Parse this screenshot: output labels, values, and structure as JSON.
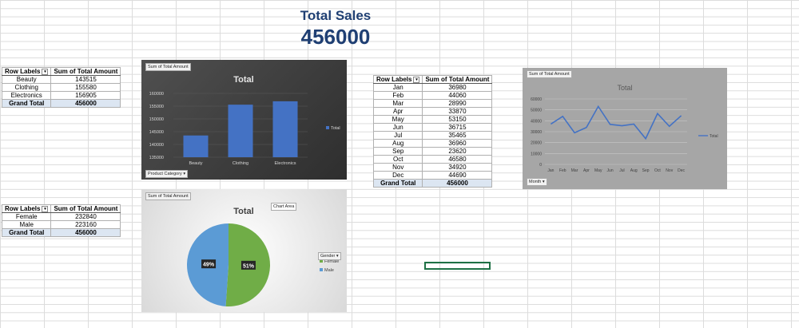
{
  "header": {
    "title": "Total Sales",
    "total": "456000"
  },
  "pivot_category": {
    "headers": [
      "Row Labels",
      "Sum of Total Amount"
    ],
    "rows": [
      [
        "Beauty",
        "143515"
      ],
      [
        "Clothing",
        "155580"
      ],
      [
        "Electronics",
        "156905"
      ]
    ],
    "grand_total": [
      "Grand Total",
      "456000"
    ]
  },
  "pivot_gender": {
    "headers": [
      "Row Labels",
      "Sum of Total Amount"
    ],
    "rows": [
      [
        "Female",
        "232840"
      ],
      [
        "Male",
        "223160"
      ]
    ],
    "grand_total": [
      "Grand Total",
      "456000"
    ]
  },
  "pivot_month": {
    "headers": [
      "Row Labels",
      "Sum of Total Amount"
    ],
    "rows": [
      [
        "Jan",
        "36980"
      ],
      [
        "Feb",
        "44060"
      ],
      [
        "Mar",
        "28990"
      ],
      [
        "Apr",
        "33870"
      ],
      [
        "May",
        "53150"
      ],
      [
        "Jun",
        "36715"
      ],
      [
        "Jul",
        "35465"
      ],
      [
        "Aug",
        "36960"
      ],
      [
        "Sep",
        "23620"
      ],
      [
        "Oct",
        "46580"
      ],
      [
        "Nov",
        "34920"
      ],
      [
        "Dec",
        "44690"
      ]
    ],
    "grand_total": [
      "Grand Total",
      "456000"
    ]
  },
  "chart_data": [
    {
      "type": "bar",
      "title": "Total",
      "field_button": "Sum of Total Amount",
      "axis_button": "Product Category",
      "legend": [
        "Total"
      ],
      "legend_position": "right",
      "categories": [
        "Beauty",
        "Clothing",
        "Electronics"
      ],
      "series": [
        {
          "name": "Total",
          "values": [
            143515,
            155580,
            156905
          ]
        }
      ],
      "ylim": [
        135000,
        160000
      ],
      "yticks": [
        "160000",
        "155000",
        "150000",
        "145000",
        "140000",
        "135000"
      ],
      "colors": {
        "bar": "#4472c4",
        "background": "#404040"
      }
    },
    {
      "type": "line",
      "title": "Total",
      "field_button": "Sum of Total Amount",
      "axis_button": "Month",
      "legend": [
        "Total"
      ],
      "legend_position": "right",
      "categories": [
        "Jan",
        "Feb",
        "Mar",
        "Apr",
        "May",
        "Jun",
        "Jul",
        "Aug",
        "Sep",
        "Oct",
        "Nov",
        "Dec"
      ],
      "series": [
        {
          "name": "Total",
          "values": [
            36980,
            44060,
            28990,
            33870,
            53150,
            36715,
            35465,
            36960,
            23620,
            46580,
            34920,
            44690
          ]
        }
      ],
      "ylim": [
        0,
        60000
      ],
      "yticks": [
        "60000",
        "50000",
        "40000",
        "30000",
        "20000",
        "10000",
        "0"
      ],
      "colors": {
        "line": "#4472c4",
        "background": "#a6a6a6"
      }
    },
    {
      "type": "pie",
      "title": "Total",
      "field_button": "Sum of Total Amount",
      "legend_title": "Gender",
      "legend": [
        "Female",
        "Male"
      ],
      "legend_position": "right",
      "categories": [
        "Female",
        "Male"
      ],
      "values": [
        232840,
        223160
      ],
      "labels": [
        "51%",
        "49%"
      ],
      "tooltip": "Chart Area",
      "colors": {
        "Female": "#70ad47",
        "Male": "#5b9bd5"
      }
    }
  ]
}
